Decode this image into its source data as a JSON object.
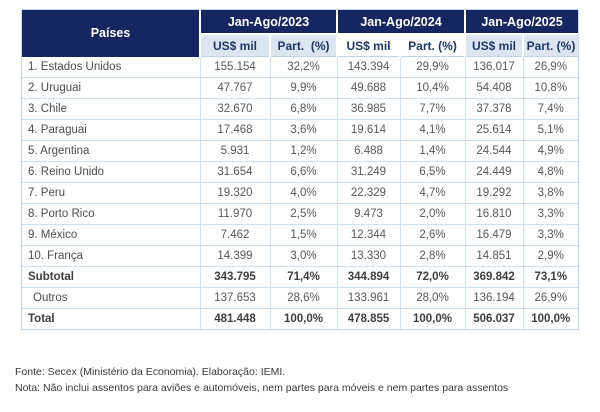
{
  "table": {
    "corner_label": "Países",
    "groups": [
      {
        "label": "Jan-Ago/2023",
        "sub": [
          "US$ mil",
          "Part.  (%)"
        ]
      },
      {
        "label": "Jan-Ago/2024",
        "sub": [
          "US$ mil",
          "Part. (%)"
        ]
      },
      {
        "label": "Jan-Ago/2025",
        "sub": [
          "US$ mil",
          "Part. (%)"
        ]
      }
    ],
    "rows": [
      {
        "label": "1. Estados Unidos",
        "style": "normal",
        "values": [
          "155.154",
          "32,2%",
          "143.394",
          "29,9%",
          "136.017",
          "26,9%"
        ]
      },
      {
        "label": "2. Uruguai",
        "style": "normal",
        "values": [
          "47.767",
          "9,9%",
          "49.688",
          "10,4%",
          "54.408",
          "10,8%"
        ]
      },
      {
        "label": "3. Chile",
        "style": "normal",
        "values": [
          "32.670",
          "6,8%",
          "36.985",
          "7,7%",
          "37.378",
          "7,4%"
        ]
      },
      {
        "label": "4. Paraguai",
        "style": "normal",
        "values": [
          "17.468",
          "3,6%",
          "19.614",
          "4,1%",
          "25.614",
          "5,1%"
        ]
      },
      {
        "label": "5. Argentina",
        "style": "normal",
        "values": [
          "5.931",
          "1,2%",
          "6.488",
          "1,4%",
          "24.544",
          "4,9%"
        ]
      },
      {
        "label": "6. Reino Unido",
        "style": "normal",
        "values": [
          "31.654",
          "6,6%",
          "31.249",
          "6,5%",
          "24.449",
          "4,8%"
        ]
      },
      {
        "label": "7. Peru",
        "style": "normal",
        "values": [
          "19.320",
          "4,0%",
          "22.329",
          "4,7%",
          "19.292",
          "3,8%"
        ]
      },
      {
        "label": "8. Porto Rico",
        "style": "normal",
        "values": [
          "11.970",
          "2,5%",
          "9.473",
          "2,0%",
          "16.810",
          "3,3%"
        ]
      },
      {
        "label": "9. México",
        "style": "normal",
        "values": [
          "7.462",
          "1,5%",
          "12.344",
          "2,6%",
          "16.479",
          "3,3%"
        ]
      },
      {
        "label": "10. França",
        "style": "normal",
        "values": [
          "14.399",
          "3,0%",
          "13.330",
          "2,8%",
          "14.851",
          "2,9%"
        ]
      },
      {
        "label": "Subtotal",
        "style": "bold",
        "values": [
          "343.795",
          "71,4%",
          "344.894",
          "72,0%",
          "369.842",
          "73,1%"
        ]
      },
      {
        "label": "Outros",
        "style": "indent",
        "values": [
          "137.653",
          "28,6%",
          "133.961",
          "28,0%",
          "136.194",
          "26,9%"
        ]
      },
      {
        "label": "Total",
        "style": "bold",
        "values": [
          "481.448",
          "100,0%",
          "478.855",
          "100,0%",
          "506.037",
          "100,0%"
        ]
      }
    ]
  },
  "footer": {
    "source": "Fonte: Secex (Ministério da Economia). Elaboração: IEMI.",
    "note": "Nota: Não inclui assentos para aviões e automóveis, nem partes para móveis e nem partes para assentos"
  },
  "colors": {
    "header_navy": "#16265E",
    "subheader_blue": "#dce6f2",
    "grid_blue": "#cfe0f2",
    "body_text": "#595959"
  }
}
